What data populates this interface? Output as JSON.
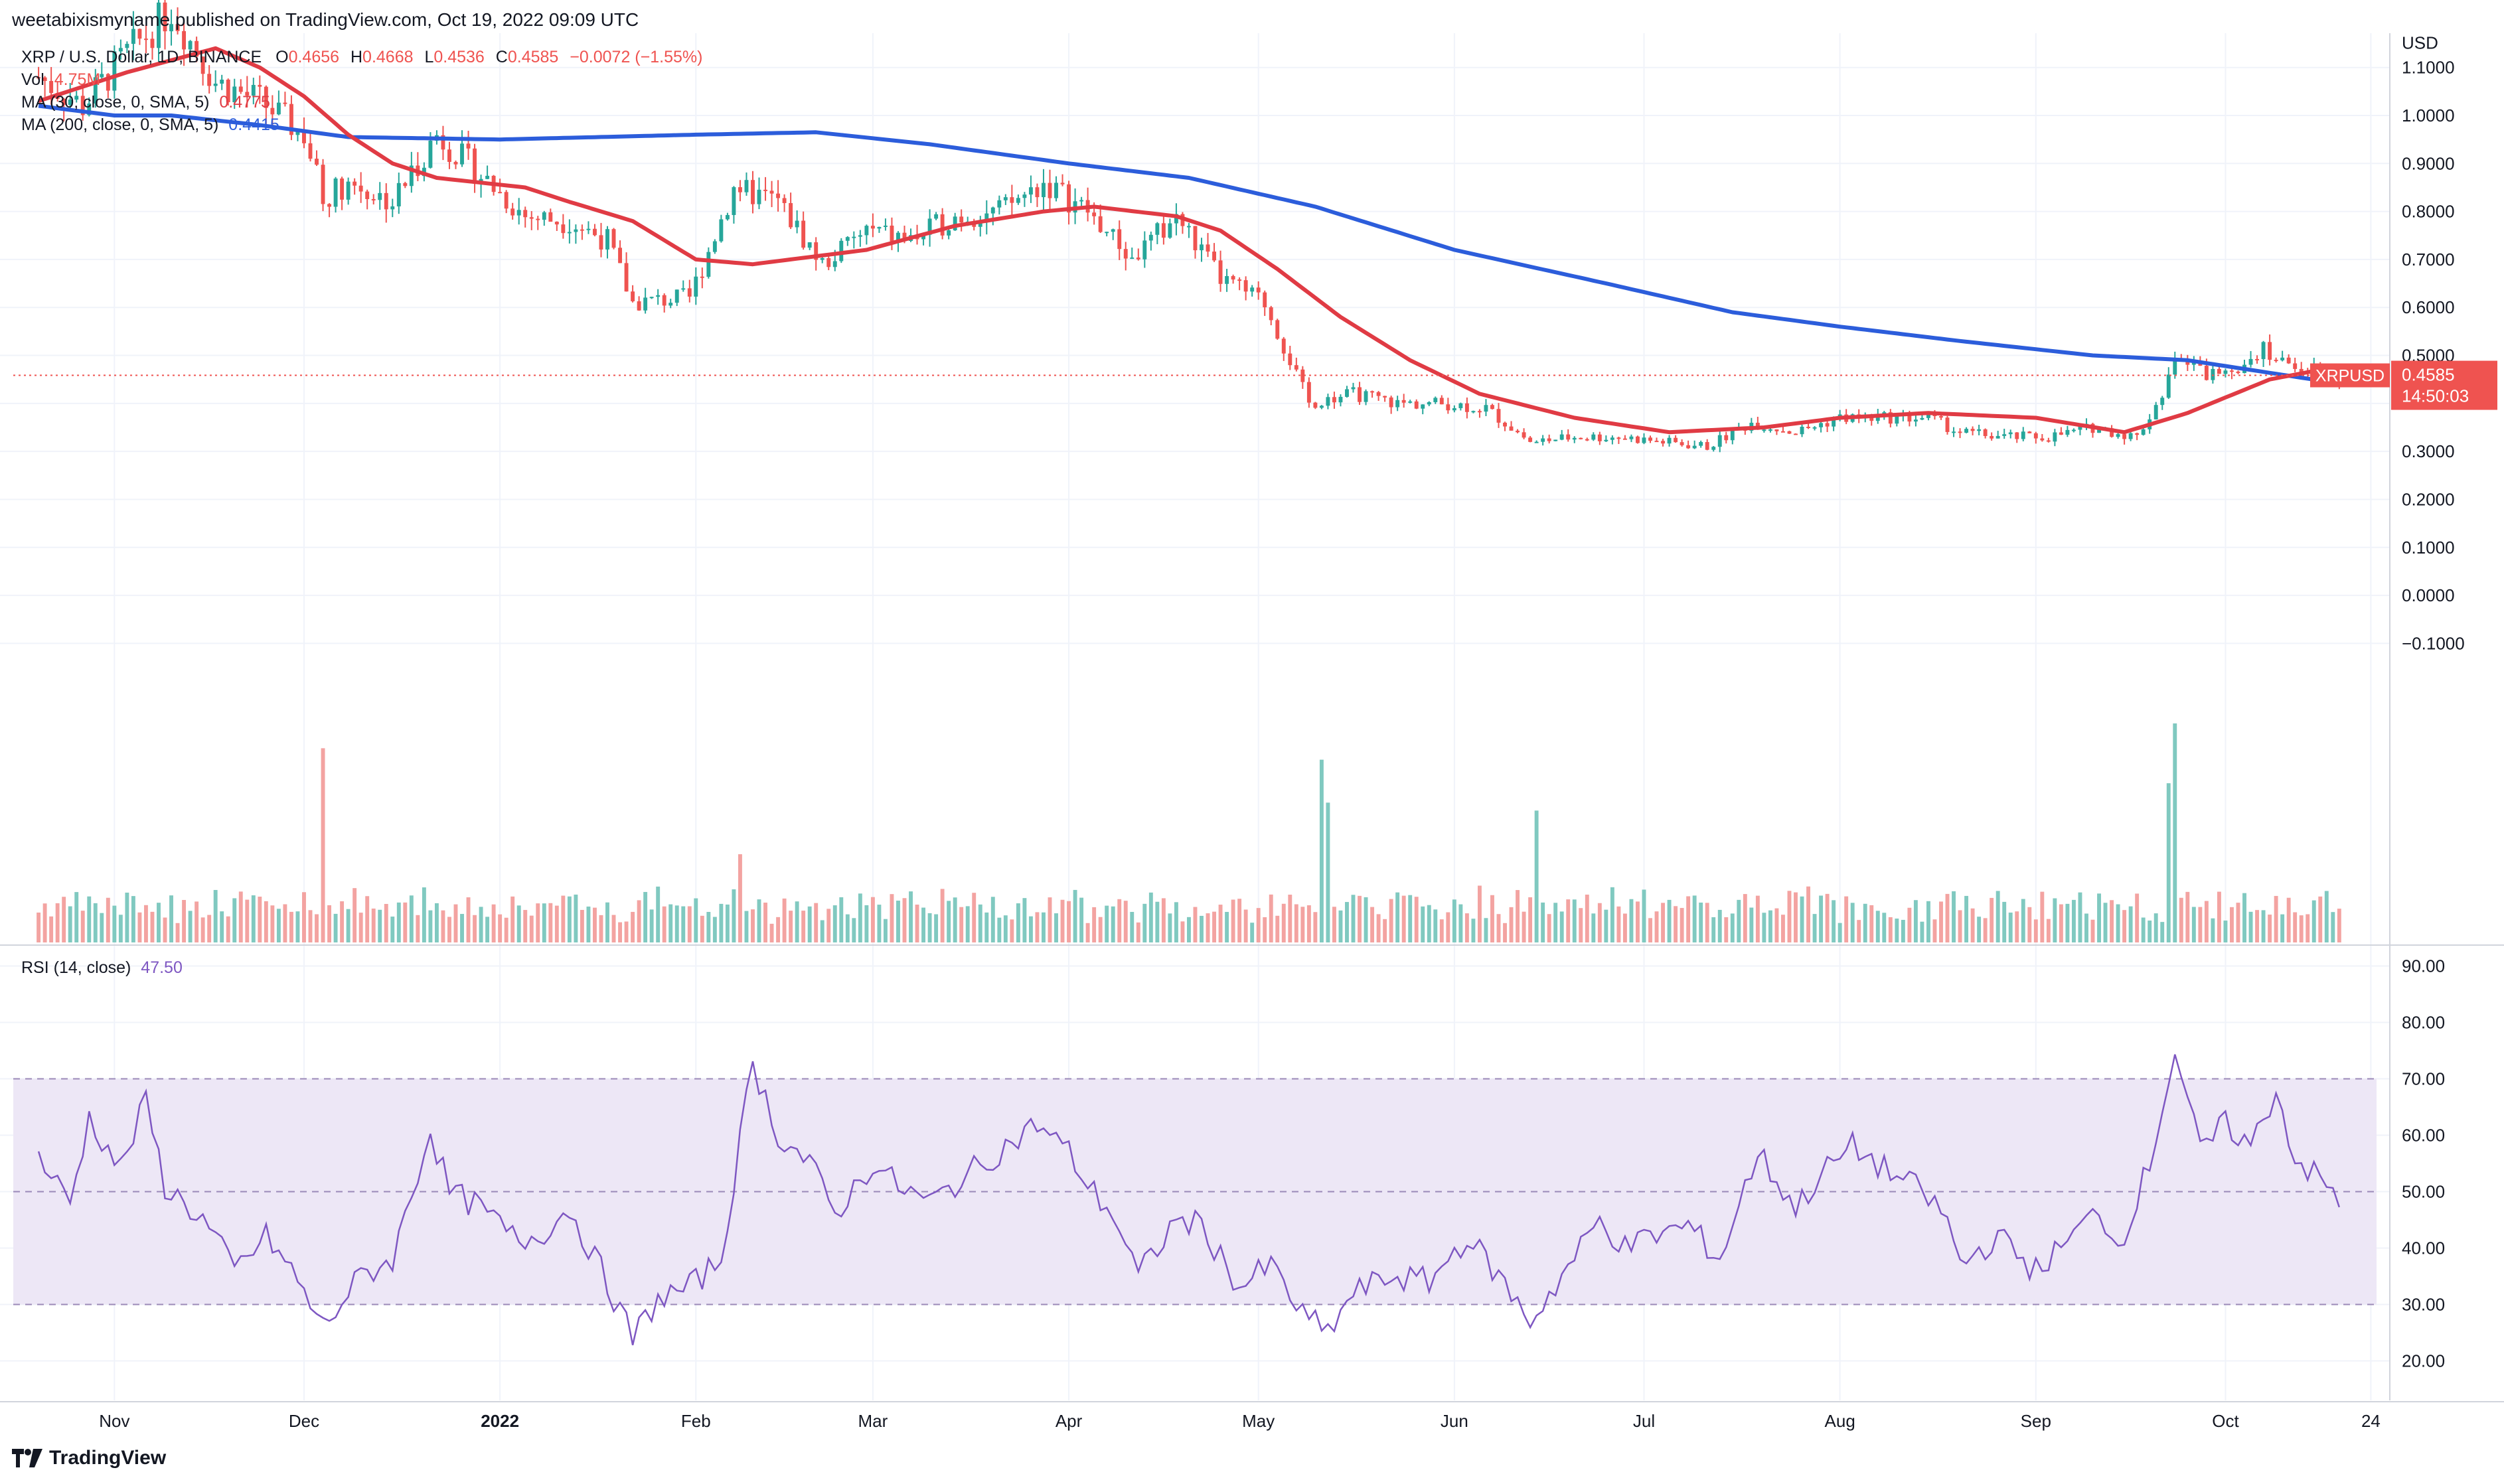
{
  "header": {
    "publish_line": "weetabixismyname published on TradingView.com, Oct 19, 2022 09:09 UTC"
  },
  "legend": {
    "symbol": "XRP / U.S. Dollar, 1D, BINANCE",
    "ohlc": {
      "o_label": "O",
      "o": "0.4656",
      "h_label": "H",
      "h": "0.4668",
      "l_label": "L",
      "l": "0.4536",
      "c_label": "C",
      "c": "0.4585",
      "change": "−0.0072 (−1.55%)"
    },
    "vol_label": "Vol",
    "vol_value": "4.75M",
    "ma30_label": "MA (30, close, 0, SMA, 5)",
    "ma30_value": "0.4775",
    "ma200_label": "MA (200, close, 0, SMA, 5)",
    "ma200_value": "0.4415",
    "rsi_label": "RSI (14, close)",
    "rsi_value": "47.50"
  },
  "price_scale": {
    "currency": "USD",
    "ticks": [
      "1.1000",
      "1.0000",
      "0.9000",
      "0.8000",
      "0.7000",
      "0.6000",
      "0.5000",
      "0.4000",
      "0.3000",
      "0.2000",
      "0.1000",
      "0.0000",
      "−0.1000"
    ],
    "last_symbol": "XRPUSD",
    "last_price": "0.4585",
    "countdown": "14:50:03"
  },
  "rsi_scale": {
    "ticks": [
      "90.00",
      "80.00",
      "70.00",
      "60.00",
      "50.00",
      "40.00",
      "30.00",
      "20.00"
    ]
  },
  "time_axis": {
    "labels": [
      "Nov",
      "Dec",
      "2022",
      "Feb",
      "Mar",
      "Apr",
      "May",
      "Jun",
      "Jul",
      "Aug",
      "Sep",
      "Oct",
      "24"
    ]
  },
  "colors": {
    "up": "#26a69a",
    "down": "#ef5350",
    "ma30": "#e03b44",
    "ma200": "#2c5ddb",
    "rsi": "#7e57c2",
    "band": "#ede7f6"
  },
  "chart_data": {
    "type": "candlestick",
    "y_range_price": [
      -0.17,
      1.13
    ],
    "rsi_range": [
      13,
      93
    ],
    "rsi_band": [
      30,
      70
    ],
    "anchors": [
      [
        "2021-10-20",
        1.08
      ],
      [
        "2021-10-27",
        1.02
      ],
      [
        "2021-11-03",
        1.13
      ],
      [
        "2021-11-10",
        1.22
      ],
      [
        "2021-11-17",
        1.07
      ],
      [
        "2021-11-24",
        1.03
      ],
      [
        "2021-12-01",
        0.96
      ],
      [
        "2021-12-04",
        0.83
      ],
      [
        "2021-12-08",
        0.86
      ],
      [
        "2021-12-15",
        0.82
      ],
      [
        "2021-12-22",
        0.96
      ],
      [
        "2021-12-27",
        0.9
      ],
      [
        "2022-01-05",
        0.79
      ],
      [
        "2022-01-12",
        0.78
      ],
      [
        "2022-01-18",
        0.74
      ],
      [
        "2022-01-22",
        0.61
      ],
      [
        "2022-01-31",
        0.62
      ],
      [
        "2022-02-07",
        0.85
      ],
      [
        "2022-02-14",
        0.82
      ],
      [
        "2022-02-21",
        0.69
      ],
      [
        "2022-02-28",
        0.76
      ],
      [
        "2022-03-07",
        0.74
      ],
      [
        "2022-03-14",
        0.79
      ],
      [
        "2022-03-21",
        0.8
      ],
      [
        "2022-03-28",
        0.86
      ],
      [
        "2022-04-04",
        0.8
      ],
      [
        "2022-04-11",
        0.7
      ],
      [
        "2022-04-18",
        0.79
      ],
      [
        "2022-04-25",
        0.66
      ],
      [
        "2022-05-02",
        0.61
      ],
      [
        "2022-05-09",
        0.4
      ],
      [
        "2022-05-16",
        0.42
      ],
      [
        "2022-05-23",
        0.4
      ],
      [
        "2022-05-30",
        0.4
      ],
      [
        "2022-06-06",
        0.39
      ],
      [
        "2022-06-13",
        0.32
      ],
      [
        "2022-06-20",
        0.33
      ],
      [
        "2022-06-27",
        0.33
      ],
      [
        "2022-07-04",
        0.32
      ],
      [
        "2022-07-11",
        0.31
      ],
      [
        "2022-07-18",
        0.36
      ],
      [
        "2022-07-25",
        0.34
      ],
      [
        "2022-08-01",
        0.37
      ],
      [
        "2022-08-08",
        0.37
      ],
      [
        "2022-08-15",
        0.37
      ],
      [
        "2022-08-20",
        0.34
      ],
      [
        "2022-08-27",
        0.33
      ],
      [
        "2022-09-03",
        0.33
      ],
      [
        "2022-09-10",
        0.35
      ],
      [
        "2022-09-17",
        0.33
      ],
      [
        "2022-09-21",
        0.42
      ],
      [
        "2022-09-23",
        0.5
      ],
      [
        "2022-09-28",
        0.46
      ],
      [
        "2022-10-03",
        0.48
      ],
      [
        "2022-10-07",
        0.52
      ],
      [
        "2022-10-10",
        0.48
      ],
      [
        "2022-10-14",
        0.48
      ],
      [
        "2022-10-19",
        0.4585
      ]
    ],
    "ma30_anchors": [
      [
        "2021-10-20",
        1.03
      ],
      [
        "2021-11-03",
        1.09
      ],
      [
        "2021-11-17",
        1.14
      ],
      [
        "2021-11-24",
        1.1
      ],
      [
        "2021-12-01",
        1.04
      ],
      [
        "2021-12-08",
        0.96
      ],
      [
        "2021-12-15",
        0.9
      ],
      [
        "2021-12-22",
        0.87
      ],
      [
        "2022-01-05",
        0.85
      ],
      [
        "2022-01-12",
        0.82
      ],
      [
        "2022-01-22",
        0.78
      ],
      [
        "2022-02-01",
        0.7
      ],
      [
        "2022-02-10",
        0.69
      ],
      [
        "2022-02-28",
        0.72
      ],
      [
        "2022-03-14",
        0.77
      ],
      [
        "2022-03-28",
        0.8
      ],
      [
        "2022-04-05",
        0.81
      ],
      [
        "2022-04-18",
        0.79
      ],
      [
        "2022-04-25",
        0.76
      ],
      [
        "2022-05-04",
        0.68
      ],
      [
        "2022-05-14",
        0.58
      ],
      [
        "2022-05-25",
        0.49
      ],
      [
        "2022-06-05",
        0.42
      ],
      [
        "2022-06-20",
        0.37
      ],
      [
        "2022-07-05",
        0.34
      ],
      [
        "2022-07-20",
        0.35
      ],
      [
        "2022-08-01",
        0.37
      ],
      [
        "2022-08-15",
        0.38
      ],
      [
        "2022-09-01",
        0.37
      ],
      [
        "2022-09-15",
        0.34
      ],
      [
        "2022-09-25",
        0.38
      ],
      [
        "2022-10-08",
        0.45
      ],
      [
        "2022-10-19",
        0.4775
      ]
    ],
    "ma200_anchors": [
      [
        "2021-10-20",
        1.02
      ],
      [
        "2021-11-01",
        1.0
      ],
      [
        "2021-11-10",
        1.0
      ],
      [
        "2021-11-24",
        0.98
      ],
      [
        "2021-12-08",
        0.955
      ],
      [
        "2022-01-01",
        0.95
      ],
      [
        "2022-02-01",
        0.96
      ],
      [
        "2022-02-20",
        0.965
      ],
      [
        "2022-03-10",
        0.94
      ],
      [
        "2022-04-01",
        0.9
      ],
      [
        "2022-04-20",
        0.87
      ],
      [
        "2022-05-10",
        0.81
      ],
      [
        "2022-06-01",
        0.72
      ],
      [
        "2022-06-25",
        0.65
      ],
      [
        "2022-07-15",
        0.59
      ],
      [
        "2022-08-01",
        0.56
      ],
      [
        "2022-08-20",
        0.53
      ],
      [
        "2022-09-10",
        0.5
      ],
      [
        "2022-09-25",
        0.49
      ],
      [
        "2022-10-19",
        0.4415
      ]
    ],
    "rsi_anchors": [
      [
        "2021-10-20",
        56
      ],
      [
        "2021-10-25",
        48
      ],
      [
        "2021-10-28",
        63
      ],
      [
        "2021-11-02",
        54
      ],
      [
        "2021-11-06",
        66
      ],
      [
        "2021-11-09",
        51
      ],
      [
        "2021-11-15",
        45
      ],
      [
        "2021-11-20",
        36
      ],
      [
        "2021-11-25",
        42
      ],
      [
        "2021-11-29",
        36
      ],
      [
        "2021-12-04",
        26
      ],
      [
        "2021-12-10",
        35
      ],
      [
        "2021-12-15",
        38
      ],
      [
        "2021-12-21",
        61
      ],
      [
        "2021-12-24",
        50
      ],
      [
        "2021-12-29",
        47
      ],
      [
        "2022-01-04",
        41
      ],
      [
        "2022-01-08",
        43
      ],
      [
        "2022-01-12",
        47
      ],
      [
        "2022-01-17",
        36
      ],
      [
        "2022-01-22",
        24
      ],
      [
        "2022-01-26",
        31
      ],
      [
        "2022-01-31",
        33
      ],
      [
        "2022-02-05",
        38
      ],
      [
        "2022-02-10",
        73
      ],
      [
        "2022-02-14",
        60
      ],
      [
        "2022-02-19",
        55
      ],
      [
        "2022-02-23",
        46
      ],
      [
        "2022-03-01",
        55
      ],
      [
        "2022-03-05",
        51
      ],
      [
        "2022-03-10",
        48
      ],
      [
        "2022-03-16",
        53
      ],
      [
        "2022-03-22",
        58
      ],
      [
        "2022-03-27",
        62
      ],
      [
        "2022-04-01",
        57
      ],
      [
        "2022-04-04",
        51
      ],
      [
        "2022-04-08",
        46
      ],
      [
        "2022-04-12",
        35
      ],
      [
        "2022-04-18",
        45
      ],
      [
        "2022-04-22",
        44
      ],
      [
        "2022-04-28",
        33
      ],
      [
        "2022-05-03",
        37
      ],
      [
        "2022-05-08",
        28
      ],
      [
        "2022-05-12",
        25
      ],
      [
        "2022-05-16",
        32
      ],
      [
        "2022-05-22",
        35
      ],
      [
        "2022-05-28",
        34
      ],
      [
        "2022-06-03",
        42
      ],
      [
        "2022-06-08",
        35
      ],
      [
        "2022-06-13",
        27
      ],
      [
        "2022-06-18",
        35
      ],
      [
        "2022-06-24",
        45
      ],
      [
        "2022-06-28",
        40
      ],
      [
        "2022-07-02",
        42
      ],
      [
        "2022-07-08",
        44
      ],
      [
        "2022-07-13",
        38
      ],
      [
        "2022-07-19",
        57
      ],
      [
        "2022-07-25",
        47
      ],
      [
        "2022-07-29",
        53
      ],
      [
        "2022-08-03",
        58
      ],
      [
        "2022-08-08",
        54
      ],
      [
        "2022-08-14",
        50
      ],
      [
        "2022-08-18",
        45
      ],
      [
        "2022-08-20",
        37
      ],
      [
        "2022-08-26",
        42
      ],
      [
        "2022-09-01",
        36
      ],
      [
        "2022-09-06",
        41
      ],
      [
        "2022-09-11",
        47
      ],
      [
        "2022-09-14",
        40
      ],
      [
        "2022-09-19",
        55
      ],
      [
        "2022-09-23",
        75
      ],
      [
        "2022-09-27",
        57
      ],
      [
        "2022-10-01",
        62
      ],
      [
        "2022-10-05",
        58
      ],
      [
        "2022-10-09",
        68
      ],
      [
        "2022-10-12",
        56
      ],
      [
        "2022-10-17",
        51
      ],
      [
        "2022-10-19",
        47.5
      ]
    ],
    "volume_spikes": [
      [
        "2021-12-04",
        11
      ],
      [
        "2022-02-08",
        5
      ],
      [
        "2022-05-11",
        10
      ],
      [
        "2022-05-12",
        8
      ],
      [
        "2022-06-14",
        7
      ],
      [
        "2022-09-23",
        14
      ],
      [
        "2022-09-22",
        9
      ]
    ]
  }
}
